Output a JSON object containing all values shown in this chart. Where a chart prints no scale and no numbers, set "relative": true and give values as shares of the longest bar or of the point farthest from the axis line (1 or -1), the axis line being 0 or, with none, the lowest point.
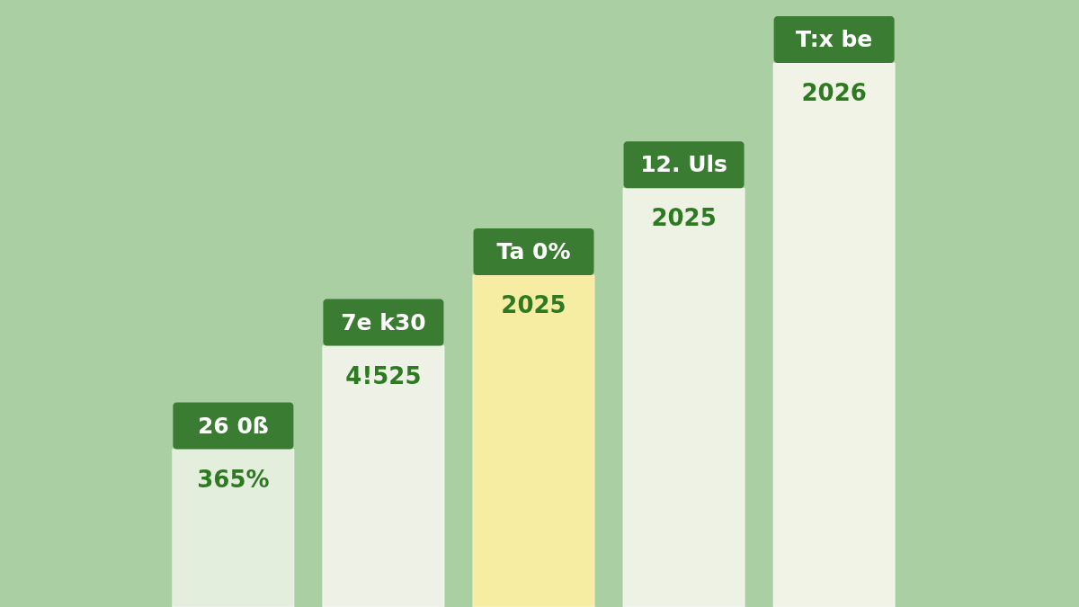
{
  "chart_data": {
    "type": "bar",
    "relative": true,
    "categories": [
      "26 0ß",
      "7e k30",
      "Ta 0%",
      "12. Uls",
      "T:x be"
    ],
    "values": [
      0.29,
      0.48,
      0.61,
      0.77,
      1
    ],
    "colors": [
      "#e4eedc",
      "#eef2e6",
      "#f6eca2",
      "#eef2e4",
      "#f0f3e6"
    ],
    "annotations": [
      "365%",
      "4!525",
      "2025",
      "2025",
      "2026"
    ]
  }
}
